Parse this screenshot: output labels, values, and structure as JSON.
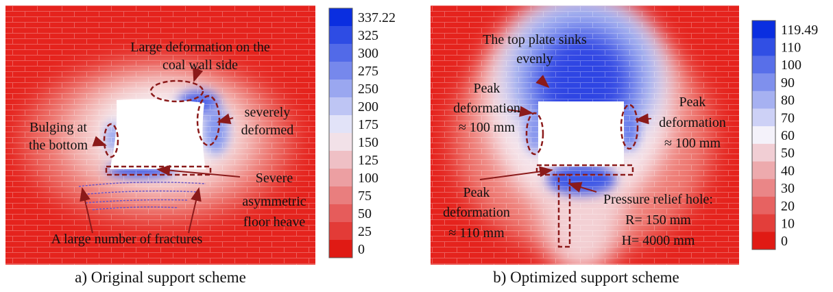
{
  "panel_a": {
    "annotations": {
      "coal_wall": [
        "Large deformation on the",
        "coal wall side"
      ],
      "severely": [
        "severely",
        "deformed"
      ],
      "bulging": [
        "Bulging at",
        "the bottom"
      ],
      "floor_heave": [
        "Severe",
        "asymmetric",
        "floor heave"
      ],
      "fractures": [
        "A large number of fractures"
      ]
    },
    "colorbar": [
      "337.22",
      "325",
      "300",
      "275",
      "250",
      "200",
      "175",
      "150",
      "125",
      "100",
      "75",
      "50",
      "25",
      "0"
    ],
    "caption": "a) Original support scheme"
  },
  "panel_b": {
    "annotations": {
      "top_plate": [
        "The top plate sinks",
        "evenly"
      ],
      "peak_left": [
        "Peak",
        "deformation",
        "≈ 100 mm"
      ],
      "peak_right": [
        "Peak",
        "deformation",
        "≈ 100 mm"
      ],
      "peak_bottom": [
        "Peak",
        "deformation",
        "≈ 110 mm"
      ],
      "relief_hole": [
        "Pressure relief hole:",
        "R= 150 mm",
        "H= 4000 mm"
      ]
    },
    "colorbar": [
      "119.49",
      "110",
      "100",
      "90",
      "80",
      "70",
      "60",
      "50",
      "40",
      "30",
      "20",
      "10",
      "0"
    ],
    "caption": "b) Optimized support scheme"
  }
}
